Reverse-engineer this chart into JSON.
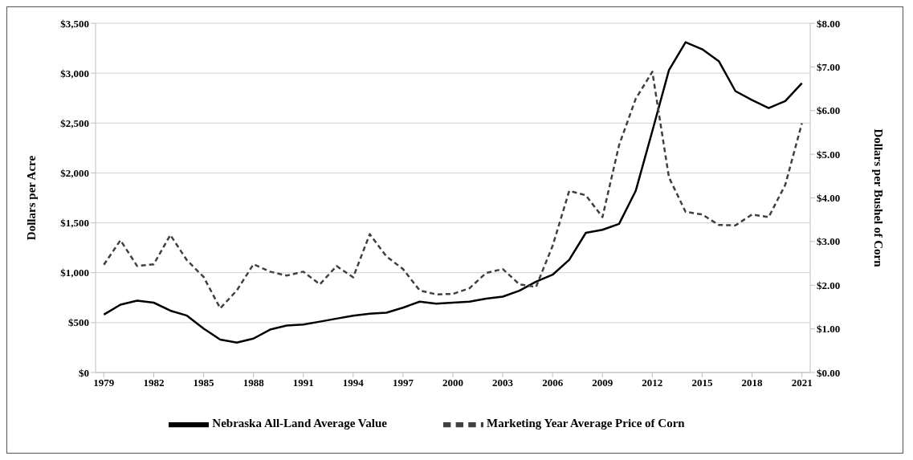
{
  "chart_data": {
    "type": "line",
    "x": [
      1979,
      1980,
      1981,
      1982,
      1983,
      1984,
      1985,
      1986,
      1987,
      1988,
      1989,
      1990,
      1991,
      1992,
      1993,
      1994,
      1995,
      1996,
      1997,
      1998,
      1999,
      2000,
      2001,
      2002,
      2003,
      2004,
      2005,
      2006,
      2007,
      2008,
      2009,
      2010,
      2011,
      2012,
      2013,
      2014,
      2015,
      2016,
      2017,
      2018,
      2019,
      2020,
      2021
    ],
    "xlim": [
      1978.5,
      2021.5
    ],
    "xticks": [
      1979,
      1982,
      1985,
      1988,
      1991,
      1994,
      1997,
      2000,
      2003,
      2006,
      2009,
      2012,
      2015,
      2018,
      2021
    ],
    "ylim": [
      0,
      3500
    ],
    "yticks": [
      {
        "value": 0,
        "label": "$0"
      },
      {
        "value": 500,
        "label": "$500"
      },
      {
        "value": 1000,
        "label": "$1,000"
      },
      {
        "value": 1500,
        "label": "$1,500"
      },
      {
        "value": 2000,
        "label": "$2,000"
      },
      {
        "value": 2500,
        "label": "$2,500"
      },
      {
        "value": 3000,
        "label": "$3,000"
      },
      {
        "value": 3500,
        "label": "$3,500"
      }
    ],
    "y2lim": [
      0,
      8
    ],
    "y2ticks": [
      {
        "value": 0,
        "label": "$0.00"
      },
      {
        "value": 1,
        "label": "$1.00"
      },
      {
        "value": 2,
        "label": "$2.00"
      },
      {
        "value": 3,
        "label": "$3.00"
      },
      {
        "value": 4,
        "label": "$4.00"
      },
      {
        "value": 5,
        "label": "$5.00"
      },
      {
        "value": 6,
        "label": "$6.00"
      },
      {
        "value": 7,
        "label": "$7.00"
      },
      {
        "value": 8,
        "label": "$8.00"
      }
    ],
    "ylabel": "Dollars per Acre",
    "y2label": "Dollars per Bushel of Corn",
    "grid": "y",
    "legend": "bottom",
    "marker": "none",
    "series": [
      {
        "name": "Nebraska All-Land Average Value",
        "color": "#000000",
        "line_style": "solid",
        "values": [
          580,
          680,
          720,
          700,
          620,
          570,
          440,
          330,
          300,
          340,
          430,
          470,
          480,
          510,
          540,
          570,
          590,
          600,
          650,
          710,
          690,
          700,
          710,
          740,
          760,
          820,
          910,
          980,
          1130,
          1400,
          1430,
          1490,
          1820,
          2420,
          3030,
          3310,
          3240,
          3120,
          2820,
          2730,
          2650,
          2720,
          2900
        ]
      },
      {
        "name": "Marketing Year Average Price of Corn",
        "color": "#404040",
        "line_style": "dashed",
        "axis": "y2",
        "values": [
          2.47,
          3.03,
          2.44,
          2.48,
          3.15,
          2.57,
          2.19,
          1.47,
          1.88,
          2.48,
          2.31,
          2.22,
          2.31,
          2.02,
          2.44,
          2.18,
          3.17,
          2.66,
          2.37,
          1.88,
          1.79,
          1.8,
          1.93,
          2.28,
          2.37,
          2.02,
          1.96,
          2.9,
          4.16,
          4.06,
          3.56,
          5.21,
          6.27,
          6.89,
          4.47,
          3.68,
          3.62,
          3.38,
          3.37,
          3.62,
          3.56,
          4.3,
          5.71
        ]
      }
    ]
  }
}
